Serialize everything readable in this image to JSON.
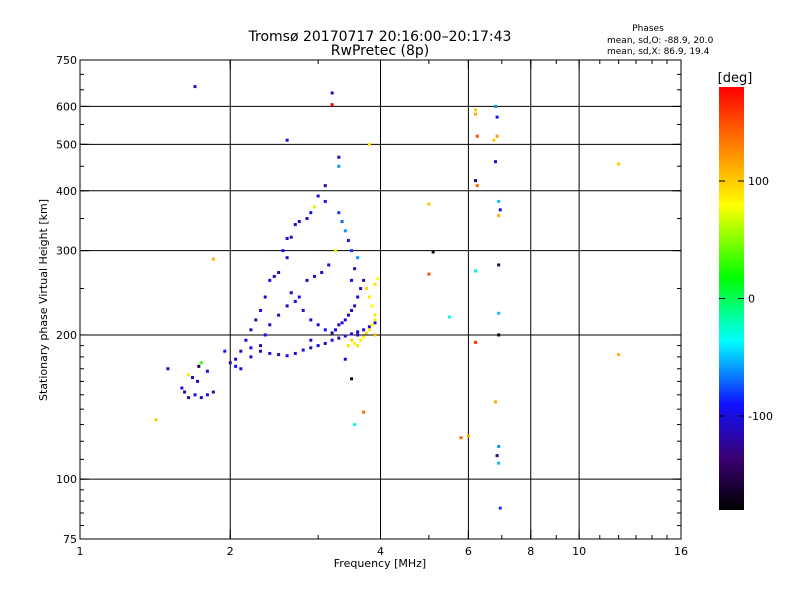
{
  "chart_data": {
    "type": "scatter",
    "title": "Tromsø 20170717 20:16:00–20:17:43",
    "subtitle": "RwPretec (8p)",
    "xlabel": "Frequency [MHz]",
    "ylabel": "Stationary phase Virtual Height [km]",
    "x_scale": "log",
    "y_scale": "log",
    "xlim": [
      1,
      16
    ],
    "ylim": [
      75,
      750
    ],
    "x_ticks": [
      1,
      2,
      4,
      6,
      8,
      10,
      16
    ],
    "x_tick_labels": [
      "1",
      "2",
      "4",
      "6",
      "8",
      "10",
      "16"
    ],
    "y_ticks": [
      75,
      100,
      200,
      300,
      400,
      500,
      600,
      750
    ],
    "y_tick_labels": [
      "75",
      "100",
      "200",
      "300",
      "400",
      "500",
      "600",
      "750"
    ],
    "gridlines_x": [
      2,
      4,
      6,
      8,
      10
    ],
    "gridlines_y": [
      100,
      200,
      300,
      400,
      500,
      600
    ],
    "grid": true,
    "stats": {
      "header": "Phases",
      "line_o": "mean, sd,O: -88.9, 20.0",
      "line_x": "mean, sd,X:  86.9, 19.4"
    },
    "colorbar": {
      "label": "[deg]",
      "range": [
        -180,
        180
      ],
      "ticks": [
        100,
        0,
        -100
      ],
      "tick_labels": [
        "100",
        "0",
        "-100"
      ]
    },
    "points": [
      [
        1.7,
        660,
        -100
      ],
      [
        3.2,
        640,
        -110
      ],
      [
        3.2,
        605,
        180
      ],
      [
        2.6,
        510,
        -100
      ],
      [
        3.3,
        470,
        -110
      ],
      [
        3.8,
        500,
        90
      ],
      [
        3.3,
        450,
        -60
      ],
      [
        3.1,
        410,
        -130
      ],
      [
        3.0,
        390,
        -110
      ],
      [
        3.1,
        380,
        -100
      ],
      [
        2.95,
        370,
        70
      ],
      [
        2.9,
        360,
        -90
      ],
      [
        2.85,
        350,
        -100
      ],
      [
        2.75,
        345,
        -110
      ],
      [
        2.7,
        340,
        -100
      ],
      [
        2.65,
        320,
        -110
      ],
      [
        2.6,
        318,
        -100
      ],
      [
        2.55,
        300,
        -90
      ],
      [
        2.6,
        290,
        -100
      ],
      [
        2.5,
        270,
        -110
      ],
      [
        2.45,
        265,
        -120
      ],
      [
        2.4,
        260,
        -100
      ],
      [
        2.35,
        240,
        -110
      ],
      [
        2.3,
        225,
        -100
      ],
      [
        2.25,
        215,
        -120
      ],
      [
        2.2,
        205,
        -110
      ],
      [
        2.15,
        195,
        -100
      ],
      [
        2.1,
        185,
        -120
      ],
      [
        2.05,
        178,
        -110
      ],
      [
        2.0,
        175,
        -120
      ],
      [
        2.05,
        172,
        -90
      ],
      [
        2.1,
        170,
        -110
      ],
      [
        2.2,
        180,
        -100
      ],
      [
        2.3,
        185,
        -110
      ],
      [
        2.4,
        183,
        -100
      ],
      [
        2.5,
        182,
        -110
      ],
      [
        2.6,
        181,
        -100
      ],
      [
        2.7,
        183,
        -110
      ],
      [
        2.8,
        186,
        -100
      ],
      [
        2.9,
        188,
        -110
      ],
      [
        3.0,
        190,
        -100
      ],
      [
        3.1,
        192,
        -110
      ],
      [
        3.2,
        195,
        -100
      ],
      [
        3.3,
        197,
        -120
      ],
      [
        3.4,
        199,
        -110
      ],
      [
        3.5,
        201,
        -100
      ],
      [
        3.6,
        203,
        -110
      ],
      [
        3.7,
        205,
        -100
      ],
      [
        3.8,
        208,
        -110
      ],
      [
        3.9,
        212,
        -100
      ],
      [
        3.9,
        220,
        90
      ],
      [
        3.85,
        230,
        80
      ],
      [
        3.8,
        240,
        85
      ],
      [
        3.75,
        250,
        95
      ],
      [
        3.9,
        255,
        90
      ],
      [
        3.95,
        262,
        80
      ],
      [
        3.7,
        260,
        -110
      ],
      [
        3.65,
        250,
        -100
      ],
      [
        3.6,
        240,
        -110
      ],
      [
        3.55,
        230,
        -100
      ],
      [
        3.5,
        225,
        -110
      ],
      [
        3.45,
        220,
        -100
      ],
      [
        3.4,
        215,
        -110
      ],
      [
        3.35,
        212,
        -100
      ],
      [
        3.3,
        210,
        -110
      ],
      [
        3.25,
        205,
        -100
      ],
      [
        3.2,
        202,
        -110
      ],
      [
        3.1,
        205,
        -100
      ],
      [
        3.0,
        210,
        -110
      ],
      [
        2.9,
        215,
        -100
      ],
      [
        2.8,
        225,
        -110
      ],
      [
        2.7,
        235,
        -100
      ],
      [
        2.65,
        245,
        -110
      ],
      [
        3.5,
        260,
        -100
      ],
      [
        3.55,
        275,
        -110
      ],
      [
        3.6,
        290,
        -60
      ],
      [
        3.5,
        300,
        -80
      ],
      [
        3.45,
        315,
        -90
      ],
      [
        3.4,
        330,
        -60
      ],
      [
        3.35,
        345,
        -70
      ],
      [
        3.3,
        360,
        -80
      ],
      [
        3.25,
        300,
        70
      ],
      [
        3.15,
        280,
        -100
      ],
      [
        3.05,
        270,
        -110
      ],
      [
        2.95,
        265,
        -100
      ],
      [
        2.85,
        260,
        -110
      ],
      [
        2.75,
        240,
        -100
      ],
      [
        2.6,
        230,
        -110
      ],
      [
        2.5,
        220,
        -100
      ],
      [
        2.4,
        210,
        -110
      ],
      [
        2.35,
        200,
        -100
      ],
      [
        2.3,
        190,
        -110
      ],
      [
        2.2,
        188,
        -100
      ],
      [
        3.6,
        200,
        90
      ],
      [
        3.65,
        195,
        85
      ],
      [
        3.7,
        198,
        80
      ],
      [
        3.75,
        202,
        90
      ],
      [
        3.8,
        205,
        85
      ],
      [
        3.6,
        190,
        90
      ],
      [
        3.55,
        192,
        85
      ],
      [
        3.5,
        195,
        95
      ],
      [
        3.85,
        210,
        80
      ],
      [
        3.9,
        215,
        85
      ],
      [
        3.45,
        190,
        90
      ],
      [
        1.7,
        150,
        -100
      ],
      [
        1.65,
        148,
        -110
      ],
      [
        1.62,
        152,
        -120
      ],
      [
        1.6,
        155,
        -100
      ],
      [
        1.75,
        148,
        -110
      ],
      [
        1.8,
        150,
        -100
      ],
      [
        1.85,
        152,
        -120
      ],
      [
        1.72,
        160,
        -110
      ],
      [
        1.68,
        163,
        -110
      ],
      [
        1.65,
        165,
        90
      ],
      [
        1.8,
        168,
        -100
      ],
      [
        1.73,
        172,
        -160
      ],
      [
        1.75,
        175,
        30
      ],
      [
        1.5,
        170,
        -110
      ],
      [
        1.42,
        133,
        100
      ],
      [
        1.85,
        288,
        110
      ],
      [
        1.95,
        185,
        -90
      ],
      [
        3.5,
        162,
        -170
      ],
      [
        3.4,
        178,
        -110
      ],
      [
        3.55,
        130,
        -30
      ],
      [
        3.7,
        138,
        140
      ],
      [
        3.6,
        200,
        -110
      ],
      [
        3.9,
        200,
        110
      ],
      [
        2.9,
        195,
        -100
      ],
      [
        5.0,
        375,
        100
      ],
      [
        5.1,
        298,
        -170
      ],
      [
        5.0,
        268,
        150
      ],
      [
        5.8,
        122,
        140
      ],
      [
        5.5,
        218,
        -30
      ],
      [
        6.2,
        578,
        110
      ],
      [
        6.2,
        590,
        100
      ],
      [
        6.25,
        520,
        150
      ],
      [
        6.25,
        410,
        140
      ],
      [
        6.2,
        420,
        -130
      ],
      [
        6.2,
        272,
        -40
      ],
      [
        6.2,
        193,
        160
      ],
      [
        6.0,
        123,
        110
      ],
      [
        6.8,
        600,
        -60
      ],
      [
        6.85,
        570,
        -90
      ],
      [
        6.85,
        520,
        120
      ],
      [
        6.75,
        510,
        100
      ],
      [
        6.8,
        460,
        -110
      ],
      [
        6.9,
        380,
        -50
      ],
      [
        6.95,
        365,
        -100
      ],
      [
        6.9,
        355,
        110
      ],
      [
        6.9,
        280,
        -150
      ],
      [
        6.9,
        222,
        -50
      ],
      [
        6.9,
        200,
        -170
      ],
      [
        6.8,
        145,
        110
      ],
      [
        6.9,
        117,
        -60
      ],
      [
        6.85,
        112,
        -130
      ],
      [
        6.9,
        108,
        -50
      ],
      [
        6.95,
        87,
        -80
      ],
      [
        12.0,
        455,
        100
      ],
      [
        12.0,
        182,
        110
      ]
    ]
  }
}
